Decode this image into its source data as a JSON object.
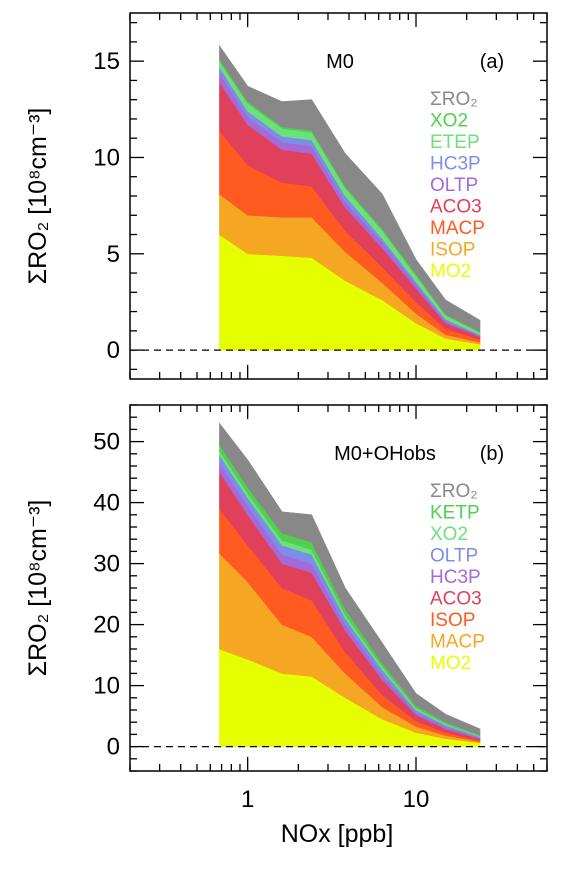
{
  "chart_data": [
    {
      "type": "area",
      "stacked": true,
      "xscale": "log",
      "xlim": [
        0.2,
        60
      ],
      "ylim": [
        -1.5,
        17.5
      ],
      "yticks": [
        0,
        5,
        10,
        15
      ],
      "xticks": [
        1,
        10
      ],
      "ylabel": "ΣRO₂ [10⁸cm⁻³]",
      "zero_line": "dashed",
      "model_label": "M0",
      "panel_label": "(a)",
      "x": [
        0.68,
        1.0,
        1.6,
        2.4,
        3.8,
        6.3,
        10.0,
        15.0,
        24.0
      ],
      "series": [
        {
          "name": "MO2",
          "color": "#e6ff00",
          "values": [
            6.0,
            5.0,
            4.9,
            4.8,
            3.6,
            2.6,
            1.4,
            0.6,
            0.3
          ]
        },
        {
          "name": "ISOP",
          "color": "#f5a623",
          "values": [
            2.1,
            2.0,
            2.0,
            2.1,
            1.5,
            0.9,
            0.5,
            0.2,
            0.1
          ]
        },
        {
          "name": "MACP",
          "color": "#ff5a1f",
          "values": [
            3.3,
            2.6,
            1.8,
            1.6,
            1.1,
            0.8,
            0.6,
            0.3,
            0.15
          ]
        },
        {
          "name": "ACO3",
          "color": "#e0405a",
          "values": [
            2.5,
            2.1,
            1.7,
            1.7,
            1.2,
            1.0,
            0.7,
            0.3,
            0.15
          ]
        },
        {
          "name": "OLTP",
          "color": "#a36ad8",
          "values": [
            0.5,
            0.4,
            0.4,
            0.4,
            0.3,
            0.3,
            0.2,
            0.1,
            0.05
          ]
        },
        {
          "name": "HC3P",
          "color": "#7b8ee8",
          "values": [
            0.3,
            0.3,
            0.3,
            0.3,
            0.3,
            0.2,
            0.15,
            0.1,
            0.05
          ]
        },
        {
          "name": "ETEP",
          "color": "#6ee07a",
          "values": [
            0.3,
            0.4,
            0.4,
            0.4,
            0.4,
            0.4,
            0.3,
            0.2,
            0.1
          ]
        },
        {
          "name": "XO2",
          "color": "#4fd14f",
          "values": [
            0.1,
            0.1,
            0.1,
            0.1,
            0.1,
            0.1,
            0.1,
            0.05,
            0.05
          ]
        },
        {
          "name": "ΣRO₂",
          "color": "#888888",
          "values": [
            0.7,
            0.8,
            1.3,
            1.6,
            1.7,
            1.8,
            0.75,
            0.75,
            0.6
          ]
        }
      ],
      "legend": [
        {
          "label": "ΣRO₂",
          "color": "#888888"
        },
        {
          "label": "XO2",
          "color": "#4fd14f"
        },
        {
          "label": "ETEP",
          "color": "#6ee07a"
        },
        {
          "label": "HC3P",
          "color": "#7b8ee8"
        },
        {
          "label": "OLTP",
          "color": "#a36ad8"
        },
        {
          "label": "ACO3",
          "color": "#e0405a"
        },
        {
          "label": "MACP",
          "color": "#ff5a1f"
        },
        {
          "label": "ISOP",
          "color": "#f5a623"
        },
        {
          "label": "MO2",
          "color": "#e6ff00"
        }
      ]
    },
    {
      "type": "area",
      "stacked": true,
      "xscale": "log",
      "xlim": [
        0.2,
        60
      ],
      "ylim": [
        -4,
        56
      ],
      "yticks": [
        0,
        10,
        20,
        30,
        40,
        50
      ],
      "xticks": [
        1,
        10
      ],
      "ylabel": "ΣRO₂ [10⁸cm⁻³]",
      "xlabel": "NOx [ppb]",
      "zero_line": "dashed",
      "model_label": "M0+OHobs",
      "panel_label": "(b)",
      "x": [
        0.68,
        1.0,
        1.6,
        2.4,
        3.8,
        6.3,
        10.0,
        15.0,
        24.0
      ],
      "series": [
        {
          "name": "MO2",
          "color": "#e6ff00",
          "values": [
            16.0,
            14.3,
            12.0,
            11.5,
            8.0,
            4.5,
            2.3,
            1.3,
            0.6
          ]
        },
        {
          "name": "MACP",
          "color": "#f5a623",
          "values": [
            15.7,
            12.7,
            8.0,
            6.5,
            4.0,
            2.0,
            1.0,
            0.5,
            0.2
          ]
        },
        {
          "name": "ISOP",
          "color": "#ff5a1f",
          "values": [
            7.3,
            6.0,
            6.0,
            6.0,
            3.5,
            2.0,
            0.9,
            0.5,
            0.2
          ]
        },
        {
          "name": "ACO3",
          "color": "#e0405a",
          "values": [
            6.0,
            5.0,
            4.0,
            4.5,
            3.5,
            2.5,
            1.0,
            0.6,
            0.3
          ]
        },
        {
          "name": "HC3P",
          "color": "#a36ad8",
          "values": [
            1.5,
            1.5,
            1.5,
            1.5,
            1.0,
            0.8,
            0.4,
            0.3,
            0.15
          ]
        },
        {
          "name": "OLTP",
          "color": "#7b8ee8",
          "values": [
            1.3,
            1.3,
            1.5,
            1.5,
            1.0,
            0.8,
            0.4,
            0.3,
            0.15
          ]
        },
        {
          "name": "XO2",
          "color": "#6ee07a",
          "values": [
            0.7,
            0.7,
            0.8,
            0.8,
            0.6,
            0.5,
            0.3,
            0.2,
            0.1
          ]
        },
        {
          "name": "KETP",
          "color": "#4fd14f",
          "values": [
            1.0,
            1.0,
            1.2,
            1.2,
            0.9,
            0.6,
            0.4,
            0.3,
            0.2
          ]
        },
        {
          "name": "ΣRO₂",
          "color": "#888888",
          "values": [
            3.5,
            4.5,
            3.5,
            4.5,
            3.5,
            3.3,
            2.0,
            1.3,
            1.0
          ]
        }
      ],
      "legend": [
        {
          "label": "ΣRO₂",
          "color": "#888888"
        },
        {
          "label": "KETP",
          "color": "#4fd14f"
        },
        {
          "label": "XO2",
          "color": "#6ee07a"
        },
        {
          "label": "OLTP",
          "color": "#7b8ee8"
        },
        {
          "label": "HC3P",
          "color": "#a36ad8"
        },
        {
          "label": "ACO3",
          "color": "#e0405a"
        },
        {
          "label": "ISOP",
          "color": "#ff5a1f"
        },
        {
          "label": "MACP",
          "color": "#f5a623"
        },
        {
          "label": "MO2",
          "color": "#e6ff00"
        }
      ]
    }
  ]
}
